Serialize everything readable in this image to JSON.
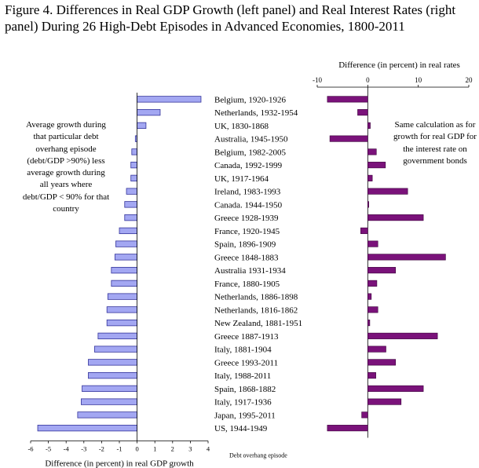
{
  "title": "Figure 4. Differences in Real GDP Growth (left panel) and Real Interest Rates (right panel) During 26 High-Debt Episodes in Advanced Economies, 1800-2011",
  "colors": {
    "gdp_bar": "#a3a7f2",
    "gdp_bar_stroke": "#34349b",
    "rate_bar": "#7a127a",
    "rate_bar_stroke": "#3a003a"
  },
  "left_annotation": "Average growth during that particular debt overhang episode (debt/GDP >90%) less average growth during all years where debt/GDP < 90% for that country",
  "right_annotation": "Same calculation as for growth for real GDP for the interest rate on government bonds",
  "category_axis_label": "Debt overhang episode",
  "chart_data": [
    {
      "type": "bar",
      "orientation": "horizontal",
      "panel": "left",
      "xlabel": "Difference (in percent) in real GDP growth",
      "xlim": [
        -6,
        4
      ],
      "xticks": [
        -6,
        -5,
        -4,
        -3,
        -2,
        -1,
        0,
        1,
        2,
        3,
        4
      ],
      "grid": false,
      "categories": [
        "Belgium, 1920-1926",
        "Netherlands, 1932-1954",
        "UK, 1830-1868",
        "Australia, 1945-1950",
        "Belgium, 1982-2005",
        "Canada, 1992-1999",
        "UK, 1917-1964",
        "Ireland, 1983-1993",
        "Canada. 1944-1950",
        "Greece 1928-1939",
        "France, 1920-1945",
        "Spain, 1896-1909",
        "Greece 1848-1883",
        "Australia 1931-1934",
        "France, 1880-1905",
        "Netherlands, 1886-1898",
        "Netherlands, 1816-1862",
        "New Zealand, 1881-1951",
        "Greece 1887-1913",
        "Italy, 1881-1904",
        "Greece 1993-2011",
        "Italy, 1988-2011",
        "Spain, 1868-1882",
        "Italy, 1917-1936",
        "Japan, 1995-2011",
        "US, 1944-1949"
      ],
      "values": [
        3.6,
        1.3,
        0.5,
        -0.1,
        -0.3,
        -0.35,
        -0.35,
        -0.6,
        -0.7,
        -0.7,
        -1.0,
        -1.2,
        -1.25,
        -1.45,
        -1.45,
        -1.65,
        -1.7,
        -1.7,
        -2.2,
        -2.4,
        -2.75,
        -2.75,
        -3.1,
        -3.15,
        -3.35,
        -5.6
      ]
    },
    {
      "type": "bar",
      "orientation": "horizontal",
      "panel": "right",
      "xlabel": "Difference (in percent) in real rates",
      "xlim": [
        -10,
        20
      ],
      "xticks": [
        -10,
        0,
        10,
        20
      ],
      "grid": false,
      "categories": [
        "Belgium, 1920-1926",
        "Netherlands, 1932-1954",
        "UK, 1830-1868",
        "Australia, 1945-1950",
        "Belgium, 1982-2005",
        "Canada, 1992-1999",
        "UK, 1917-1964",
        "Ireland, 1983-1993",
        "Canada. 1944-1950",
        "Greece 1928-1939",
        "France, 1920-1945",
        "Spain, 1896-1909",
        "Greece 1848-1883",
        "Australia 1931-1934",
        "France, 1880-1905",
        "Netherlands, 1886-1898",
        "Netherlands, 1816-1862",
        "New Zealand, 1881-1951",
        "Greece 1887-1913",
        "Italy, 1881-1904",
        "Greece 1993-2011",
        "Italy, 1988-2011",
        "Spain, 1868-1882",
        "Italy, 1917-1936",
        "Japan, 1995-2011",
        "US, 1944-1949"
      ],
      "values": [
        -8.0,
        -2.0,
        0.5,
        -7.5,
        1.7,
        3.5,
        0.9,
        7.9,
        0.2,
        11.0,
        -1.4,
        2.0,
        15.4,
        5.5,
        1.8,
        0.7,
        2.0,
        0.4,
        13.8,
        3.6,
        5.5,
        1.6,
        11.0,
        6.6,
        -1.2,
        -8.0
      ]
    }
  ]
}
